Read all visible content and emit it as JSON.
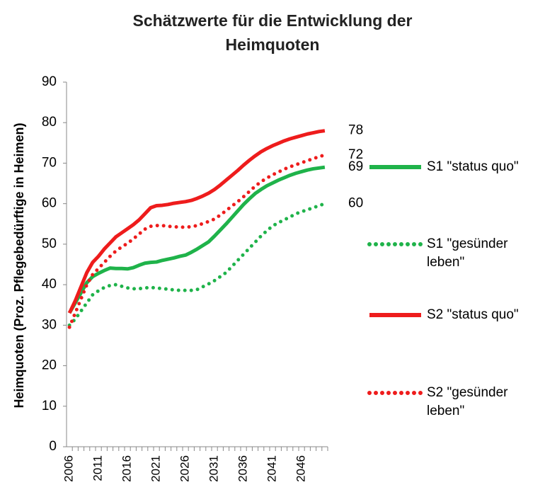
{
  "chart_data": {
    "type": "line",
    "title": "Schätzwerte für die Entwicklung der Heimquoten",
    "y_label": "Heimquoten (Proz. Pflegebedürftige in Heimen)",
    "categories": [
      "2006",
      null,
      null,
      null,
      null,
      "2011",
      null,
      null,
      null,
      null,
      "2016",
      null,
      null,
      null,
      null,
      "2021",
      null,
      null,
      null,
      null,
      "2026",
      null,
      null,
      null,
      null,
      "2031",
      null,
      null,
      null,
      null,
      "2036",
      null,
      null,
      null,
      null,
      "2041",
      null,
      null,
      null,
      null,
      "2046",
      null,
      null,
      null,
      null
    ],
    "ylim": [
      0,
      90
    ],
    "yticks": [
      0,
      10,
      20,
      30,
      40,
      50,
      60,
      70,
      80,
      90
    ],
    "legend": "right",
    "series": [
      {
        "name": "S1 \"status quo\"",
        "color": "#1fb34a",
        "style": "solid",
        "values": [
          33,
          35.5,
          38,
          40.5,
          42,
          42.8,
          43.5,
          44.1,
          44,
          44,
          43.9,
          44.2,
          44.8,
          45.3,
          45.5,
          45.6,
          46,
          46.3,
          46.6,
          47,
          47.3,
          48,
          48.8,
          49.7,
          50.6,
          52,
          53.5,
          55,
          56.6,
          58.2,
          59.8,
          61.2,
          62.5,
          63.5,
          64.4,
          65.1,
          65.8,
          66.4,
          67,
          67.5,
          67.9,
          68.3,
          68.6,
          68.8,
          69
        ]
      },
      {
        "name": "S1 \"gesünder leben\"",
        "color": "#1fb34a",
        "style": "dotted",
        "values": [
          30,
          31.5,
          33.5,
          35.5,
          37.5,
          38.5,
          39.3,
          39.8,
          40,
          39.6,
          39.2,
          39,
          39,
          39.2,
          39.3,
          39.2,
          39,
          38.9,
          38.7,
          38.6,
          38.6,
          38.6,
          38.8,
          39.5,
          40.2,
          41,
          42,
          43,
          44.5,
          46,
          47.5,
          49,
          50.5,
          52,
          53.3,
          54.5,
          55.3,
          56,
          56.7,
          57.5,
          58,
          58.5,
          59,
          59.5,
          60
        ]
      },
      {
        "name": "S2 \"status quo\"",
        "color": "#ee1c1c",
        "style": "solid",
        "values": [
          33,
          36,
          39.5,
          43,
          45.5,
          47,
          48.8,
          50.3,
          51.8,
          52.8,
          53.8,
          54.8,
          56,
          57.5,
          59,
          59.5,
          59.6,
          59.8,
          60.1,
          60.3,
          60.5,
          60.8,
          61.3,
          61.9,
          62.6,
          63.5,
          64.6,
          65.8,
          67,
          68.2,
          69.5,
          70.7,
          71.8,
          72.8,
          73.6,
          74.3,
          74.9,
          75.5,
          76,
          76.4,
          76.8,
          77.2,
          77.5,
          77.8,
          78
        ]
      },
      {
        "name": "S2 \"gesünder leben\"",
        "color": "#ee1c1c",
        "style": "dotted",
        "values": [
          29.5,
          33,
          36.5,
          40,
          42.5,
          44,
          45.5,
          47,
          48.3,
          49.3,
          50.2,
          51.3,
          52.5,
          53.7,
          54.4,
          54.6,
          54.6,
          54.4,
          54.3,
          54.2,
          54.2,
          54.3,
          54.6,
          55.1,
          55.6,
          56.2,
          57.2,
          58.3,
          59.4,
          60.5,
          61.7,
          63,
          64.3,
          65.4,
          66.3,
          67.1,
          67.8,
          68.5,
          69.1,
          69.6,
          70.1,
          70.6,
          71.1,
          71.6,
          72
        ]
      }
    ]
  }
}
